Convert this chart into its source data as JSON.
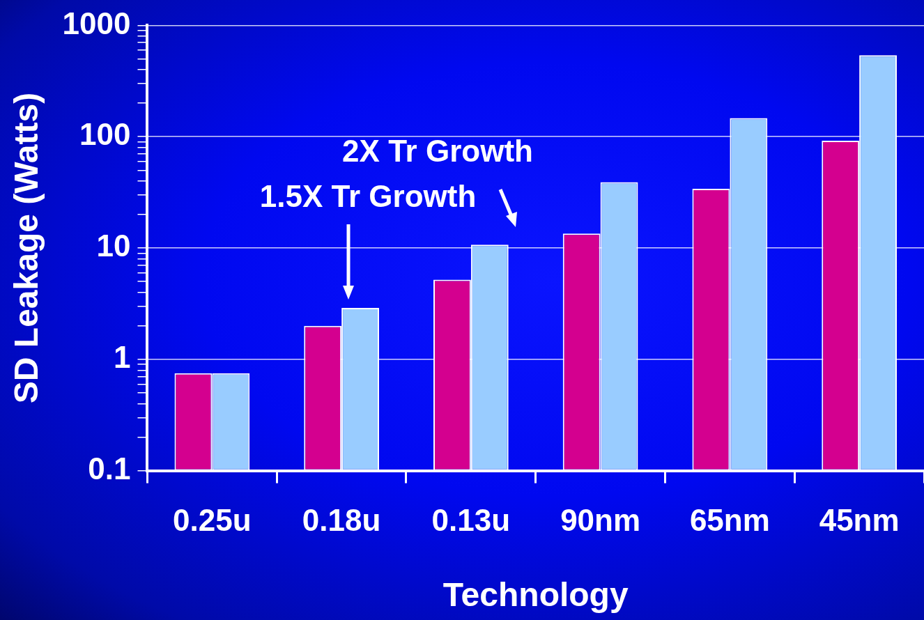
{
  "chart_data": {
    "type": "bar",
    "xlabel": "Technology",
    "ylabel": "SD Leakage (Watts)",
    "categories": [
      "0.25u",
      "0.18u",
      "0.13u",
      "90nm",
      "65nm",
      "45nm"
    ],
    "series": [
      {
        "color": "#d4008f",
        "values": [
          0.75,
          2,
          5.2,
          13.5,
          34,
          92
        ]
      },
      {
        "color": "#99ccff",
        "values": [
          0.75,
          2.9,
          10.7,
          39,
          147,
          540
        ]
      }
    ],
    "log": "y",
    "ylim": [
      0.1,
      1000
    ],
    "yticks": [
      0.1,
      {
        "value": 0.2,
        "label": null
      },
      {
        "value": 0.3,
        "label": null
      },
      {
        "value": 0.4,
        "label": null
      },
      {
        "value": 0.5,
        "label": null
      },
      {
        "value": 0.6,
        "label": null
      },
      {
        "value": 0.7,
        "label": null
      },
      {
        "value": 0.8,
        "label": null
      },
      {
        "value": 0.9,
        "label": null
      },
      1,
      {
        "value": 2,
        "label": null
      },
      {
        "value": 3,
        "label": null
      },
      {
        "value": 4,
        "label": null
      },
      {
        "value": 5,
        "label": null
      },
      {
        "value": 6,
        "label": null
      },
      {
        "value": 7,
        "label": null
      },
      {
        "value": 8,
        "label": null
      },
      {
        "value": 9,
        "label": null
      },
      10,
      {
        "value": 20,
        "label": null
      },
      {
        "value": 30,
        "label": null
      },
      {
        "value": 40,
        "label": null
      },
      {
        "value": 50,
        "label": null
      },
      {
        "value": 60,
        "label": null
      },
      {
        "value": 70,
        "label": null
      },
      {
        "value": 80,
        "label": null
      },
      {
        "value": 90,
        "label": null
      },
      100,
      {
        "value": 200,
        "label": null
      },
      {
        "value": 300,
        "label": null
      },
      {
        "value": 400,
        "label": null
      },
      {
        "value": 500,
        "label": null
      },
      {
        "value": 600,
        "label": null
      },
      {
        "value": 700,
        "label": null
      },
      {
        "value": 800,
        "label": null
      },
      {
        "value": 900,
        "label": null
      },
      1000
    ],
    "grid": "y",
    "legend": false,
    "annotations": [
      "2X Tr Growth",
      "1.5X Tr Growth"
    ]
  }
}
